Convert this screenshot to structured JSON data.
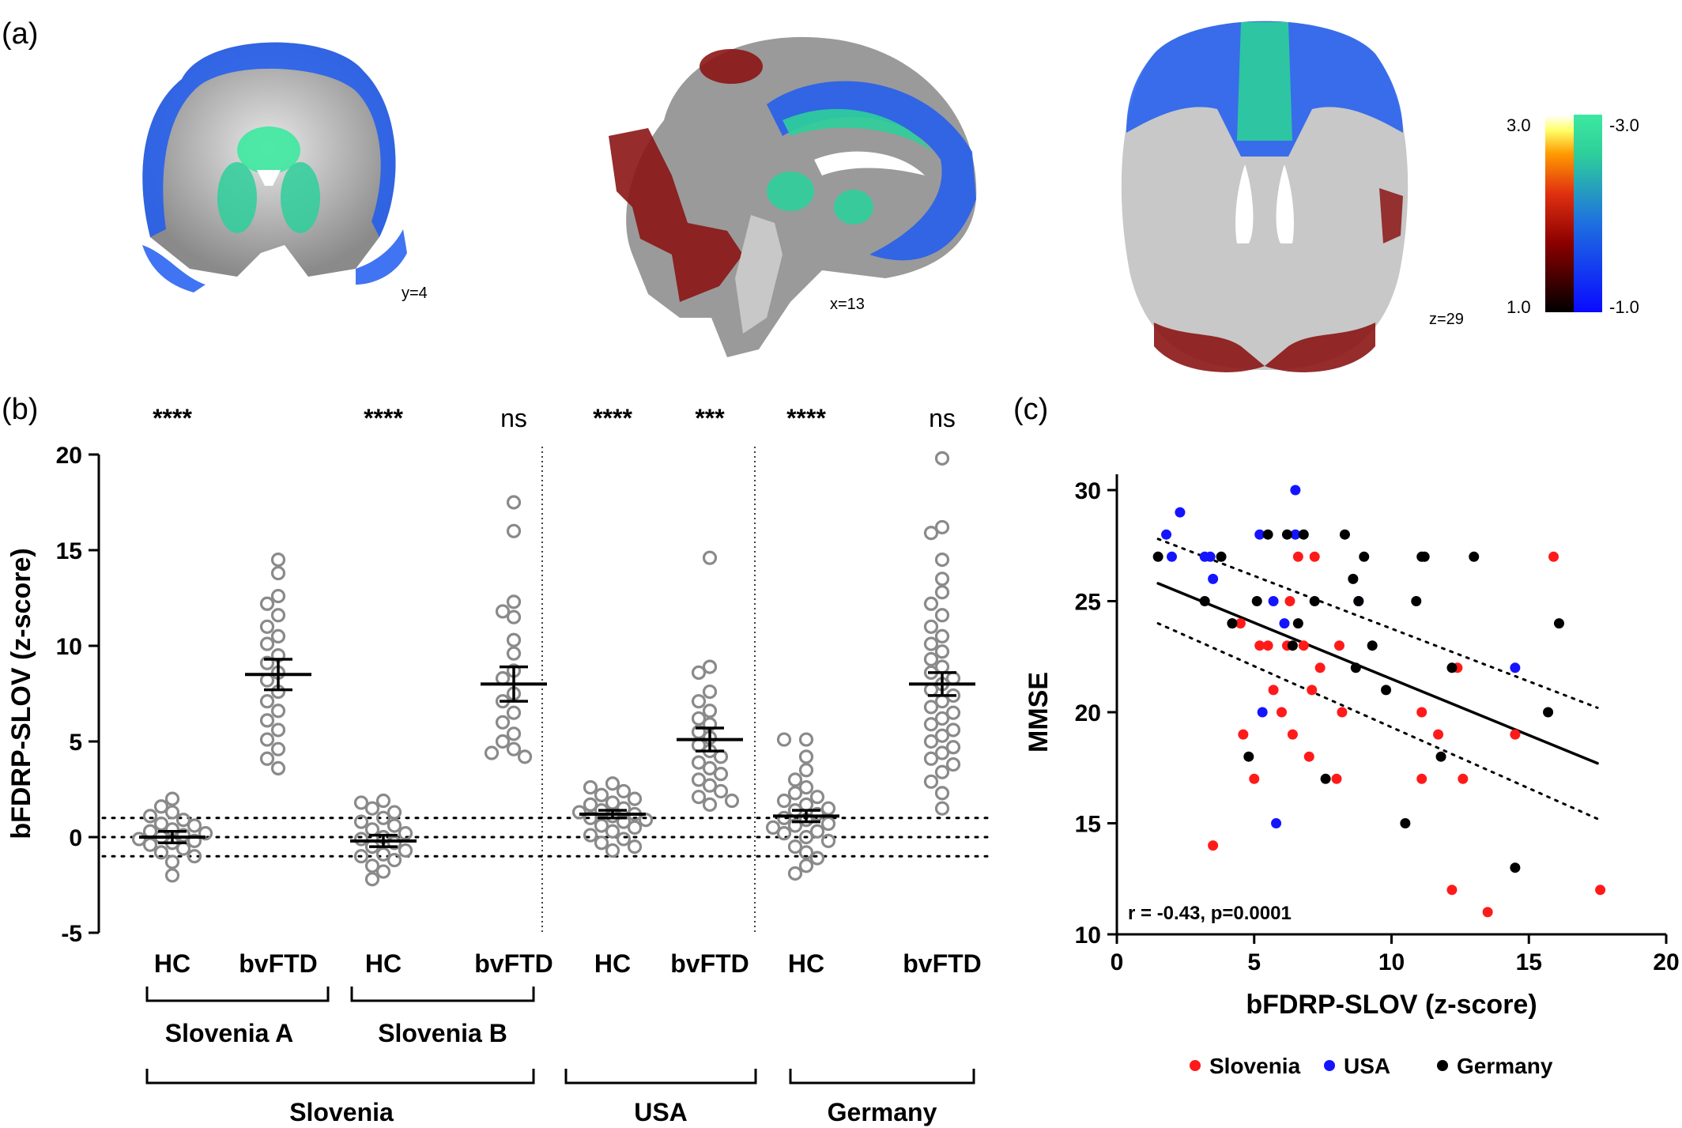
{
  "panels": {
    "a": "(a)",
    "b": "(b)",
    "c": "(c)"
  },
  "brain_slices": [
    {
      "label": "y=4",
      "view": "coronal"
    },
    {
      "label": "x=13",
      "view": "sagittal"
    },
    {
      "label": "z=29",
      "view": "axial"
    }
  ],
  "colorbar": {
    "warm_top": "3.0",
    "warm_bottom": "1.0",
    "cool_top": "-3.0",
    "cool_bottom": "-1.0",
    "colors": {
      "warm": [
        "#000000",
        "#8b0000",
        "#e03010",
        "#ff9900",
        "#ffffff"
      ],
      "cool": [
        "#1010ff",
        "#1e6fe0",
        "#2ecf9a",
        "#3de8a0"
      ]
    }
  },
  "chart_data": [
    {
      "type": "scatter",
      "ylabel": "bFDRP-SLOV (z-score)",
      "ylim": [
        -5,
        20
      ],
      "yticks": [
        "20",
        "15",
        "10",
        "5",
        "0",
        "-5"
      ],
      "reference_lines": [
        -1,
        0,
        1
      ],
      "groups": [
        {
          "label": "HC",
          "significance": "****",
          "mean": 0.0,
          "sem": 0.3,
          "values": [
            2.0,
            1.6,
            1.3,
            1.1,
            0.9,
            0.7,
            0.6,
            0.4,
            0.3,
            0.2,
            0.1,
            0.0,
            -0.1,
            -0.2,
            -0.3,
            -0.4,
            -0.6,
            -0.8,
            -1.0,
            -1.3,
            -2.0
          ]
        },
        {
          "label": "bvFTD",
          "significance": "",
          "mean": 8.5,
          "sem": 0.8,
          "values": [
            14.5,
            13.8,
            12.6,
            12.2,
            11.6,
            11.0,
            10.5,
            10.1,
            9.5,
            9.1,
            8.6,
            8.2,
            7.6,
            7.1,
            6.6,
            6.1,
            5.6,
            5.1,
            4.6,
            4.1,
            3.6
          ]
        },
        {
          "label": "HC",
          "significance": "****",
          "mean": -0.2,
          "sem": 0.3,
          "values": [
            1.9,
            1.8,
            1.5,
            1.3,
            1.0,
            0.8,
            0.6,
            0.4,
            0.2,
            0.0,
            -0.1,
            -0.3,
            -0.5,
            -0.7,
            -0.9,
            -1.0,
            -1.2,
            -1.5,
            -1.8,
            -2.2
          ]
        },
        {
          "label": "bvFTD",
          "significance": "ns",
          "mean": 8.0,
          "sem": 0.9,
          "values": [
            17.5,
            16.0,
            12.3,
            11.8,
            11.5,
            10.3,
            9.6,
            8.7,
            8.3,
            7.5,
            7.1,
            6.5,
            6.0,
            5.4,
            5.0,
            4.6,
            4.4,
            4.2
          ]
        },
        {
          "label": "HC",
          "significance": "****",
          "mean": 1.2,
          "sem": 0.2,
          "values": [
            2.8,
            2.6,
            2.4,
            2.2,
            2.0,
            1.8,
            1.7,
            1.5,
            1.4,
            1.3,
            1.2,
            1.1,
            1.0,
            0.9,
            0.8,
            0.6,
            0.5,
            0.3,
            0.1,
            -0.1,
            -0.3,
            -0.5,
            -0.7
          ]
        },
        {
          "label": "bvFTD",
          "significance": "***",
          "mean": 5.1,
          "sem": 0.6,
          "values": [
            14.6,
            8.9,
            8.6,
            7.6,
            7.1,
            6.6,
            6.2,
            5.9,
            5.5,
            5.2,
            4.8,
            4.5,
            4.2,
            3.9,
            3.6,
            3.3,
            3.0,
            2.7,
            2.4,
            2.1,
            1.9,
            1.7
          ]
        },
        {
          "label": "HC",
          "significance": "****",
          "mean": 1.1,
          "sem": 0.3,
          "values": [
            5.1,
            5.1,
            4.2,
            3.5,
            3.0,
            2.6,
            2.3,
            2.1,
            1.9,
            1.7,
            1.5,
            1.4,
            1.2,
            1.0,
            0.9,
            0.7,
            0.6,
            0.5,
            0.3,
            0.2,
            0.0,
            -0.2,
            -0.5,
            -0.8,
            -1.1,
            -1.5,
            -1.9
          ]
        },
        {
          "label": "bvFTD",
          "significance": "ns",
          "mean": 8.0,
          "sem": 0.6,
          "values": [
            19.8,
            16.2,
            15.9,
            14.5,
            13.5,
            12.8,
            12.2,
            11.6,
            11.0,
            10.5,
            10.1,
            9.7,
            9.3,
            8.9,
            8.6,
            8.3,
            8.0,
            7.7,
            7.4,
            7.1,
            6.8,
            6.5,
            6.2,
            5.9,
            5.6,
            5.3,
            5.0,
            4.7,
            4.4,
            4.1,
            3.8,
            3.4,
            2.9,
            2.3,
            1.5
          ]
        }
      ],
      "cohorts": [
        "Slovenia A",
        "Slovenia B"
      ],
      "countries": [
        "Slovenia",
        "USA",
        "Germany"
      ]
    },
    {
      "type": "scatter",
      "xlabel": "bFDRP-SLOV (z-score)",
      "ylabel": "MMSE",
      "xlim": [
        0,
        20
      ],
      "ylim": [
        10,
        30
      ],
      "xticks": [
        "0",
        "5",
        "10",
        "15",
        "20"
      ],
      "yticks": [
        "30",
        "25",
        "20",
        "15",
        "10"
      ],
      "annotation": "r = -0.43, p=0.0001",
      "regression": {
        "x": [
          1.5,
          17.5
        ],
        "y": [
          25.8,
          17.7
        ]
      },
      "ci_upper": {
        "x": [
          1.5,
          17.5
        ],
        "y": [
          27.8,
          20.2
        ]
      },
      "ci_lower": {
        "x": [
          1.5,
          17.5
        ],
        "y": [
          24.0,
          15.2
        ]
      },
      "legend": {
        "position": "bottom"
      },
      "series": [
        {
          "name": "Slovenia",
          "color": "#ff1a1a",
          "points": [
            [
              3.5,
              14
            ],
            [
              4.2,
              24
            ],
            [
              4.5,
              24
            ],
            [
              4.6,
              19
            ],
            [
              5.0,
              17
            ],
            [
              5.2,
              23
            ],
            [
              5.5,
              23
            ],
            [
              5.7,
              21
            ],
            [
              6.0,
              20
            ],
            [
              6.2,
              23
            ],
            [
              6.3,
              25
            ],
            [
              6.4,
              19
            ],
            [
              6.6,
              27
            ],
            [
              6.8,
              23
            ],
            [
              7.0,
              18
            ],
            [
              7.1,
              21
            ],
            [
              7.2,
              27
            ],
            [
              7.4,
              22
            ],
            [
              8.0,
              17
            ],
            [
              8.1,
              23
            ],
            [
              8.2,
              20
            ],
            [
              11.1,
              20
            ],
            [
              11.1,
              17
            ],
            [
              11.7,
              19
            ],
            [
              12.2,
              12
            ],
            [
              12.4,
              22
            ],
            [
              12.6,
              17
            ],
            [
              13.5,
              11
            ],
            [
              14.5,
              19
            ],
            [
              15.9,
              27
            ],
            [
              17.6,
              12
            ]
          ]
        },
        {
          "name": "USA",
          "color": "#1414ff",
          "points": [
            [
              1.8,
              28
            ],
            [
              2.0,
              27
            ],
            [
              2.3,
              29
            ],
            [
              3.2,
              27
            ],
            [
              3.4,
              27
            ],
            [
              3.5,
              26
            ],
            [
              5.2,
              28
            ],
            [
              5.3,
              20
            ],
            [
              5.7,
              25
            ],
            [
              5.8,
              15
            ],
            [
              6.1,
              24
            ],
            [
              6.5,
              30
            ],
            [
              6.5,
              28
            ],
            [
              8.8,
              25
            ],
            [
              14.5,
              22
            ]
          ]
        },
        {
          "name": "Germany",
          "color": "#000000",
          "points": [
            [
              1.5,
              27
            ],
            [
              3.2,
              25
            ],
            [
              3.8,
              27
            ],
            [
              4.2,
              24
            ],
            [
              4.8,
              18
            ],
            [
              5.1,
              25
            ],
            [
              5.5,
              28
            ],
            [
              6.2,
              28
            ],
            [
              6.4,
              23
            ],
            [
              6.6,
              24
            ],
            [
              6.8,
              28
            ],
            [
              7.2,
              25
            ],
            [
              7.6,
              17
            ],
            [
              8.3,
              28
            ],
            [
              8.6,
              26
            ],
            [
              8.8,
              25
            ],
            [
              8.7,
              22
            ],
            [
              9.0,
              27
            ],
            [
              9.3,
              23
            ],
            [
              9.8,
              21
            ],
            [
              10.5,
              15
            ],
            [
              10.9,
              25
            ],
            [
              11.2,
              27
            ],
            [
              11.1,
              27
            ],
            [
              12.2,
              22
            ],
            [
              11.8,
              18
            ],
            [
              13.0,
              27
            ],
            [
              14.5,
              13
            ],
            [
              15.7,
              20
            ],
            [
              16.1,
              24
            ]
          ]
        }
      ]
    }
  ]
}
